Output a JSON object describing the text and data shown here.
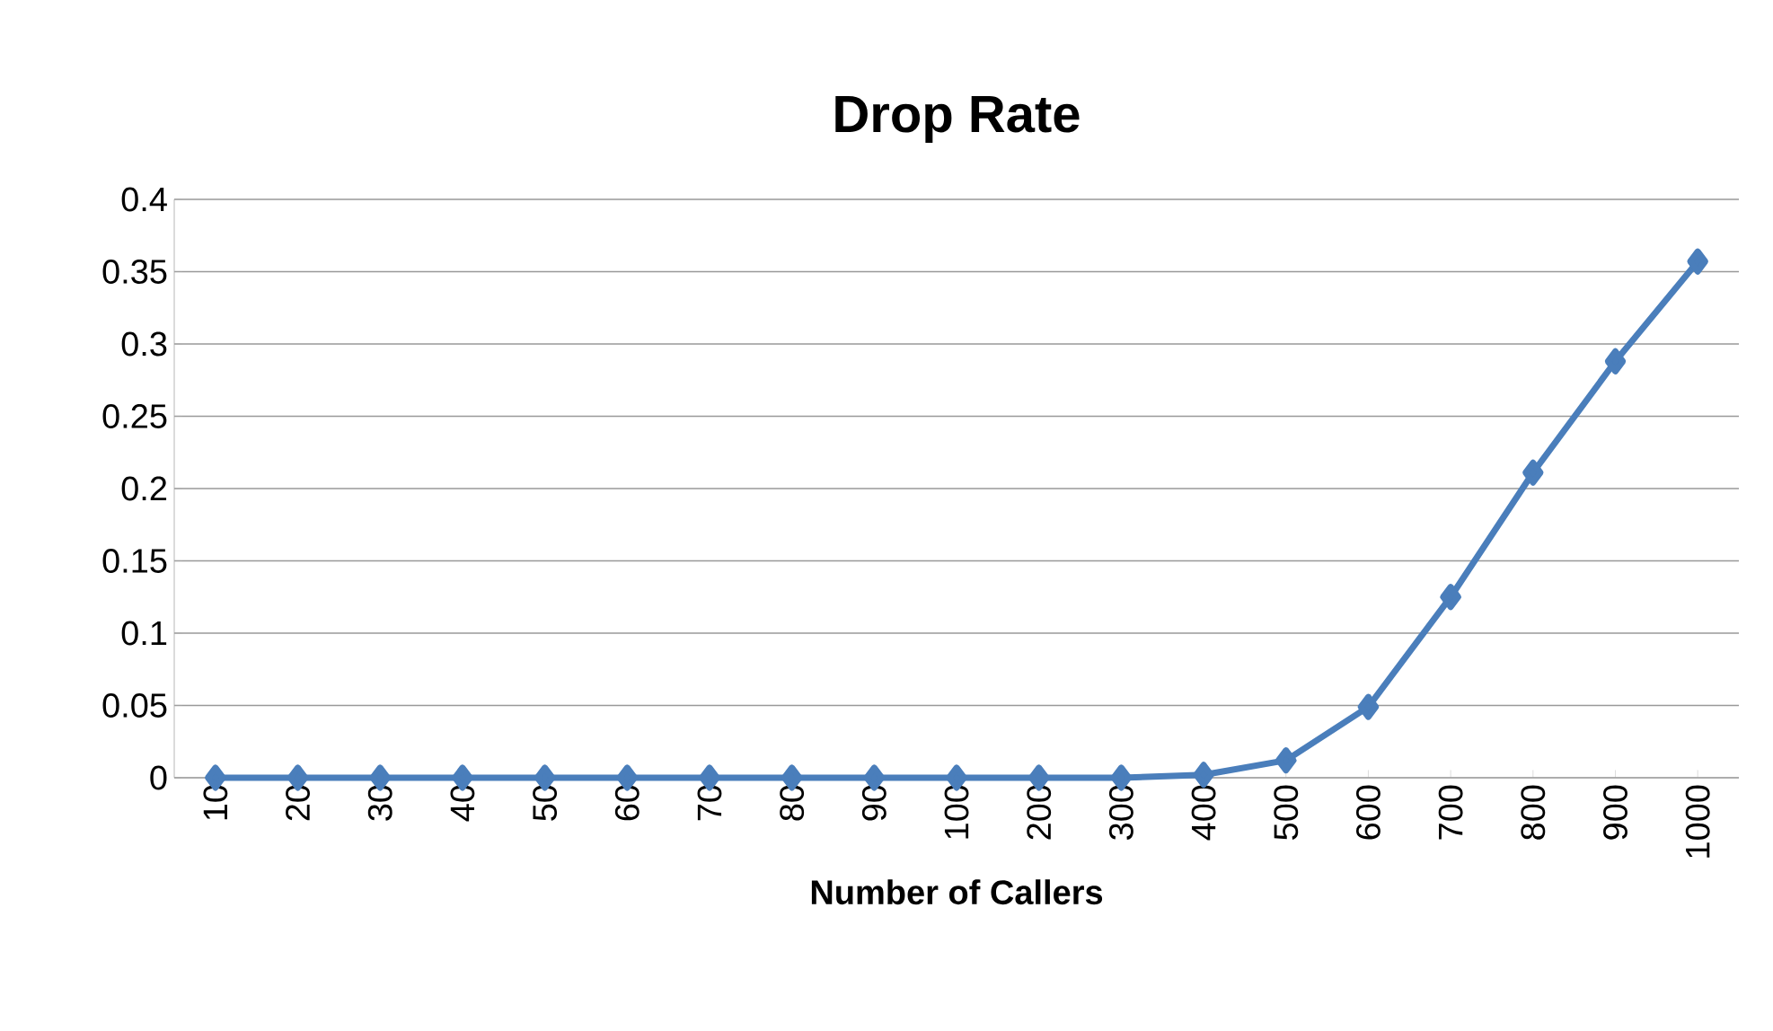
{
  "chart_data": {
    "type": "line",
    "title": "Drop Rate",
    "xlabel": "Number of Callers",
    "categories": [
      "10",
      "20",
      "30",
      "40",
      "50",
      "60",
      "70",
      "80",
      "90",
      "100",
      "200",
      "300",
      "400",
      "500",
      "600",
      "700",
      "800",
      "900",
      "1000"
    ],
    "series": [
      {
        "color": "#4a7ebb",
        "values": [
          0,
          0,
          0,
          0,
          0,
          0,
          0,
          0,
          0,
          0,
          0,
          0,
          0.002,
          0.012,
          0.049,
          0.125,
          0.211,
          0.288,
          0.357
        ]
      }
    ],
    "ylim": [
      0,
      0.4
    ],
    "yticks": [
      0,
      0.05,
      0.1,
      0.15,
      0.2,
      0.25,
      0.3,
      0.35,
      0.4
    ],
    "grid": "y",
    "marker": "diamond",
    "line_style": "solid"
  }
}
